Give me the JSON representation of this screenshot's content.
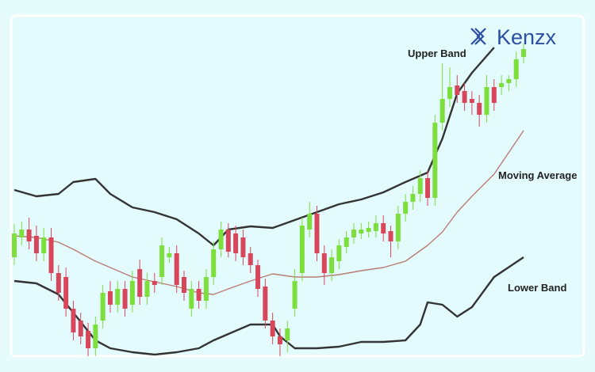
{
  "chart_data": {
    "type": "candlestick",
    "brand": "Kenzx",
    "annotations": [
      "Upper Band",
      "Moving Average",
      "Lower Band"
    ],
    "ylim": [
      0,
      440
    ],
    "up_color": "#7ddf3c",
    "down_color": "#d8465c",
    "open": [
      135,
      160,
      170,
      162,
      140,
      160,
      115,
      110,
      70,
      55,
      42,
      20,
      55,
      92,
      75,
      95,
      75,
      120,
      85,
      105,
      110,
      135,
      140,
      110,
      70,
      95,
      80,
      110,
      145,
      170,
      165,
      160,
      140,
      125,
      98,
      55,
      35,
      30,
      70,
      115,
      170,
      190,
      140,
      115,
      130,
      148,
      160,
      165,
      167,
      168,
      178,
      168,
      155,
      190,
      205,
      215,
      235,
      210,
      305,
      335,
      352,
      345,
      335,
      330,
      315,
      350,
      350,
      355,
      360,
      388
    ],
    "high": [
      177,
      180,
      185,
      175,
      172,
      172,
      125,
      122,
      80,
      65,
      52,
      60,
      100,
      105,
      105,
      105,
      118,
      132,
      115,
      115,
      160,
      148,
      150,
      118,
      105,
      105,
      120,
      155,
      180,
      178,
      175,
      170,
      148,
      132,
      108,
      65,
      45,
      55,
      120,
      185,
      205,
      200,
      150,
      145,
      158,
      168,
      178,
      178,
      180,
      188,
      188,
      175,
      200,
      215,
      225,
      245,
      245,
      315,
      380,
      375,
      365,
      355,
      345,
      340,
      365,
      360,
      365,
      365,
      395,
      405
    ],
    "low": [
      125,
      150,
      145,
      130,
      130,
      105,
      80,
      60,
      30,
      25,
      10,
      10,
      45,
      65,
      65,
      60,
      65,
      75,
      75,
      90,
      100,
      128,
      90,
      80,
      60,
      70,
      70,
      100,
      135,
      135,
      130,
      125,
      115,
      85,
      45,
      25,
      10,
      15,
      60,
      105,
      160,
      130,
      100,
      105,
      120,
      140,
      152,
      158,
      160,
      160,
      155,
      135,
      145,
      180,
      195,
      205,
      200,
      200,
      295,
      325,
      330,
      320,
      315,
      300,
      305,
      320,
      340,
      345,
      350,
      380
    ],
    "close": [
      165,
      170,
      155,
      140,
      160,
      115,
      90,
      70,
      40,
      35,
      20,
      50,
      90,
      75,
      95,
      70,
      105,
      85,
      105,
      100,
      150,
      140,
      100,
      90,
      95,
      80,
      110,
      145,
      170,
      142,
      140,
      135,
      125,
      95,
      55,
      35,
      25,
      45,
      105,
      175,
      190,
      140,
      115,
      135,
      150,
      160,
      170,
      170,
      172,
      178,
      165,
      155,
      190,
      205,
      215,
      235,
      210,
      305,
      335,
      350,
      340,
      330,
      330,
      315,
      350,
      330,
      355,
      360,
      385,
      398
    ],
    "series": [
      {
        "color": "#333333",
        "x": [
          0,
          3,
          6,
          8,
          11,
          13,
          16,
          19,
          22,
          25,
          27,
          29,
          32,
          35,
          38,
          41,
          44,
          47,
          50,
          53,
          56,
          58,
          60,
          62,
          65
        ],
        "values": [
          220,
          212,
          215,
          230,
          234,
          215,
          198,
          192,
          183,
          165,
          150,
          170,
          174,
          172,
          182,
          192,
          202,
          208,
          217,
          230,
          242,
          285,
          342,
          368,
          400
        ]
      },
      {
        "color": "#b97c74",
        "x": [
          0,
          3,
          6,
          8,
          11,
          13,
          16,
          19,
          22,
          25,
          27,
          29,
          32,
          35,
          38,
          41,
          44,
          47,
          50,
          53,
          56,
          58,
          60,
          62,
          65,
          69
        ],
        "values": [
          162,
          160,
          154,
          145,
          130,
          122,
          110,
          104,
          98,
          90,
          88,
          95,
          105,
          114,
          110,
          110,
          113,
          118,
          122,
          130,
          150,
          167,
          192,
          212,
          240,
          295
        ]
      },
      {
        "color": "#333333",
        "x": [
          0,
          3,
          6,
          8,
          11,
          13,
          16,
          19,
          22,
          25,
          27,
          29,
          32,
          35,
          36,
          38,
          41,
          44,
          47,
          50,
          53,
          55,
          56,
          58,
          60,
          62,
          65,
          69
        ],
        "values": [
          105,
          102,
          88,
          65,
          30,
          20,
          15,
          12,
          15,
          20,
          30,
          38,
          50,
          50,
          35,
          20,
          20,
          22,
          28,
          28,
          30,
          50,
          78,
          75,
          60,
          72,
          110,
          135
        ]
      }
    ]
  }
}
